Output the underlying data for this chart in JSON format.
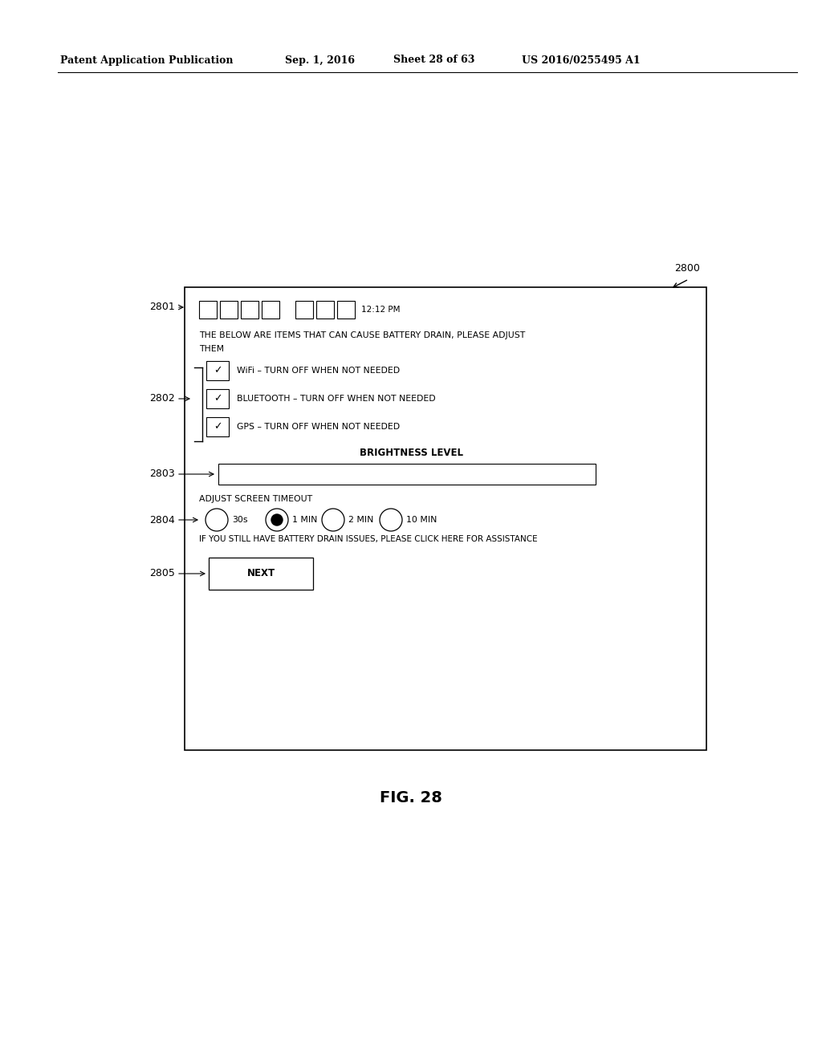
{
  "bg_color": "#ffffff",
  "header_text": "Patent Application Publication",
  "header_date": "Sep. 1, 2016",
  "header_sheet": "Sheet 28 of 63",
  "header_patent": "US 2016/0255495 A1",
  "fig_label": "FIG. 28",
  "ref_2800": "2800",
  "ref_2801": "2801",
  "ref_2802": "2802",
  "ref_2803": "2803",
  "ref_2804": "2804",
  "ref_2805": "2805",
  "time_text": "12:12 PM",
  "status_text": "THE BELOW ARE ITEMS THAT CAN CAUSE BATTERY DRAIN, PLEASE ADJUST\nTHEM",
  "wifi_text": "WiFi – TURN OFF WHEN NOT NEEDED",
  "bluetooth_text": "BLUETOOTH – TURN OFF WHEN NOT NEEDED",
  "gps_text": "GPS – TURN OFF WHEN NOT NEEDED",
  "brightness_label": "BRIGHTNESS LEVEL",
  "adjust_text": "ADJUST SCREEN TIMEOUT",
  "radio_options": [
    "30s",
    "1 MIN",
    "2 MIN",
    "10 MIN"
  ],
  "radio_selected": 1,
  "assistance_text": "IF YOU STILL HAVE BATTERY DRAIN ISSUES, PLEASE CLICK HERE FOR ASSISTANCE",
  "next_button": "NEXT"
}
